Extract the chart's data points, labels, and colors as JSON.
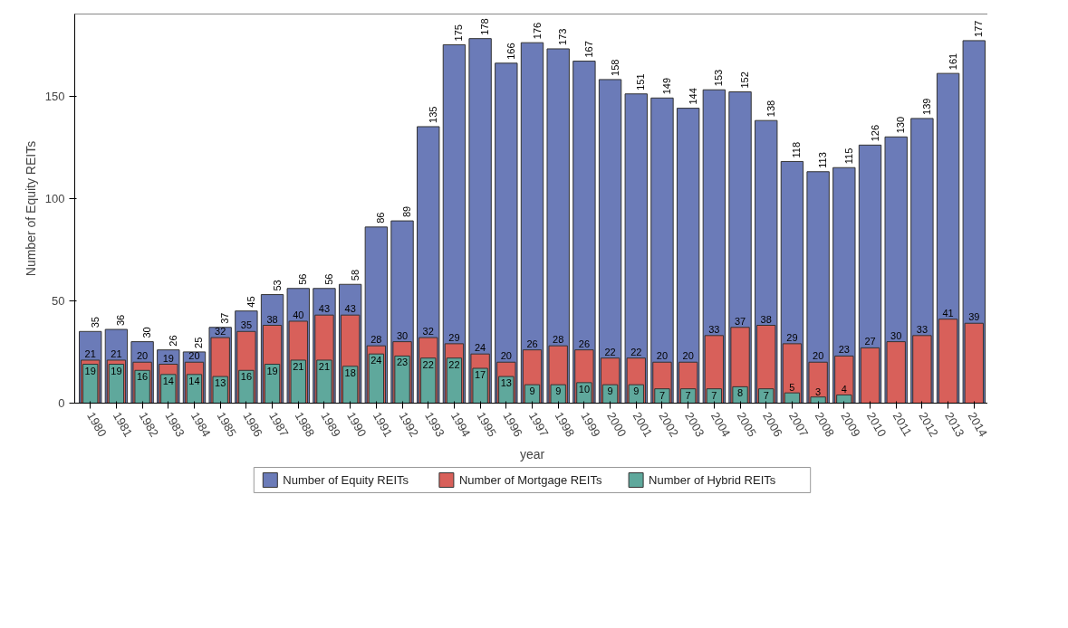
{
  "chart_data": {
    "type": "bar",
    "xlabel": "year",
    "ylabel": "Number of Equity REITs",
    "categories": [
      "1980",
      "1981",
      "1982",
      "1983",
      "1984",
      "1985",
      "1986",
      "1987",
      "1988",
      "1989",
      "1990",
      "1991",
      "1992",
      "1993",
      "1994",
      "1995",
      "1996",
      "1997",
      "1998",
      "1999",
      "2000",
      "2001",
      "2002",
      "2003",
      "2004",
      "2005",
      "2006",
      "2007",
      "2008",
      "2009",
      "2010",
      "2011",
      "2012",
      "2013",
      "2014"
    ],
    "series": [
      {
        "name": "Number of Equity REITs",
        "color": "#6b7bb8",
        "values": [
          35,
          36,
          30,
          26,
          25,
          37,
          45,
          53,
          56,
          56,
          58,
          86,
          89,
          135,
          175,
          178,
          166,
          176,
          173,
          167,
          158,
          151,
          149,
          144,
          153,
          152,
          138,
          118,
          113,
          115,
          126,
          130,
          139,
          161,
          177
        ]
      },
      {
        "name": "Number of Mortgage REITs",
        "color": "#d8605a",
        "values": [
          21,
          21,
          20,
          19,
          20,
          32,
          35,
          38,
          40,
          43,
          43,
          28,
          30,
          32,
          29,
          24,
          20,
          26,
          28,
          26,
          22,
          22,
          20,
          20,
          33,
          37,
          38,
          29,
          20,
          23,
          27,
          30,
          33,
          41,
          39
        ]
      },
      {
        "name": "Number of Hybrid REITs",
        "color": "#5fa89c",
        "values": [
          19,
          19,
          16,
          14,
          14,
          13,
          16,
          19,
          21,
          21,
          18,
          24,
          23,
          22,
          22,
          17,
          13,
          9,
          9,
          10,
          9,
          9,
          7,
          7,
          7,
          8,
          7,
          5,
          3,
          4,
          null,
          null,
          null,
          null,
          null
        ]
      }
    ],
    "ylim": [
      0,
      190
    ],
    "yticks": [
      0,
      50,
      100,
      150
    ],
    "grid": false,
    "legend": "bottom",
    "data_labels": true
  }
}
